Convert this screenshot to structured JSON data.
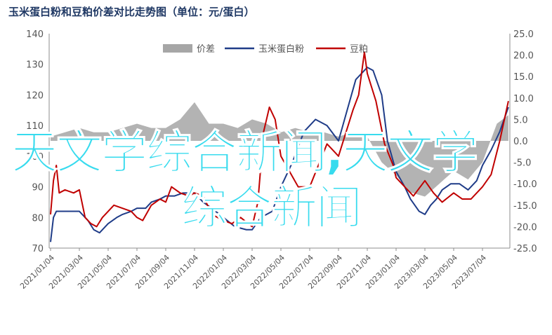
{
  "chart_data": {
    "type": "line",
    "title": "玉米蛋白粉和豆粕价差对比走势图（单位：元/蛋白）",
    "left_axis": {
      "ylim": [
        70,
        140
      ],
      "ticks": [
        "70",
        "80",
        "90",
        "100",
        "110",
        "120",
        "130",
        "140"
      ]
    },
    "right_axis": {
      "ylim": [
        -25,
        25
      ],
      "ticks": [
        "-25.0",
        "-20.0",
        "-15.0",
        "-10.0",
        "-5.0",
        "0.0",
        "5.0",
        "10.0",
        "15.0",
        "20.0",
        "25.0"
      ]
    },
    "x_ticks": [
      "2021/01/04",
      "2021/03/04",
      "2021/05/04",
      "2021/07/04",
      "2021/09/04",
      "2021/11/04",
      "2022/01/04",
      "2022/03/04",
      "2022/05/04",
      "2022/07/04",
      "2022/09/04",
      "2022/11/04",
      "2023/01/04",
      "2023/03/04",
      "2023/05/04",
      "2023/07/04"
    ],
    "legend_position": "top-center",
    "grid": false,
    "series": [
      {
        "name": "价差",
        "axis": "right",
        "kind": "area",
        "color": "#a6a6a6",
        "x": [
          0,
          0.5,
          1,
          1.5,
          2,
          2.5,
          3,
          3.5,
          4,
          4.5,
          5,
          5.5,
          6,
          6.5,
          7,
          7.5,
          8,
          8.5,
          9,
          9.5,
          10,
          10.5,
          11,
          11.5,
          12,
          12.5,
          13,
          13.5,
          14,
          14.5,
          15,
          15.5,
          15.9
        ],
        "values": [
          1,
          2,
          3,
          2,
          2,
          3,
          4,
          3,
          3,
          5,
          9,
          4,
          4,
          3,
          5,
          4,
          2,
          3,
          2,
          2,
          1,
          2,
          1,
          -5,
          -8,
          -12,
          -13,
          -10,
          -7,
          -9,
          -5,
          4,
          6
        ]
      },
      {
        "name": "玉米蛋白粉",
        "axis": "left",
        "kind": "line",
        "color": "#1f3c88",
        "x": [
          0,
          0.1,
          0.2,
          0.5,
          0.9,
          1,
          1.3,
          1.5,
          1.7,
          2,
          2.3,
          2.5,
          2.8,
          3,
          3.3,
          3.5,
          3.8,
          4,
          4.3,
          4.6,
          5,
          5.3,
          5.6,
          6,
          6.4,
          6.8,
          7,
          7.3,
          7.7,
          8,
          8.4,
          8.8,
          9.2,
          9.6,
          10,
          10.3,
          10.6,
          10.9,
          11,
          11.2,
          11.5,
          11.7,
          12,
          12.3,
          12.5,
          12.8,
          13,
          13.2,
          13.4,
          13.6,
          13.9,
          14.2,
          14.5,
          14.8,
          15,
          15.3,
          15.6,
          15.9
        ],
        "values": [
          72,
          80,
          82,
          82,
          82,
          82,
          79,
          76,
          75,
          78,
          80,
          81,
          82,
          83,
          83,
          85,
          86,
          87,
          87,
          88,
          88,
          85,
          83,
          80,
          77,
          76,
          76,
          80,
          82,
          90,
          98,
          108,
          112,
          110,
          105,
          115,
          125,
          128,
          129,
          128,
          120,
          105,
          95,
          90,
          86,
          82,
          81,
          84,
          86,
          89,
          91,
          91,
          89,
          92,
          97,
          102,
          108,
          116
        ]
      },
      {
        "name": "豆粕",
        "axis": "left",
        "kind": "line",
        "color": "#c00000",
        "x": [
          0,
          0.1,
          0.2,
          0.3,
          0.5,
          0.8,
          1,
          1.2,
          1.4,
          1.6,
          1.8,
          2,
          2.2,
          2.5,
          2.8,
          3,
          3.2,
          3.5,
          3.8,
          4,
          4.2,
          4.5,
          4.8,
          5,
          5.3,
          5.6,
          6,
          6.3,
          6.6,
          7,
          7.2,
          7.4,
          7.6,
          7.8,
          8,
          8.3,
          8.6,
          9,
          9.3,
          9.6,
          10,
          10.2,
          10.5,
          10.7,
          10.9,
          11,
          11.3,
          11.6,
          11.9,
          12,
          12.3,
          12.6,
          13,
          13.3,
          13.6,
          14,
          14.3,
          14.6,
          15,
          15.3,
          15.6,
          15.9
        ],
        "values": [
          81,
          92,
          97,
          88,
          89,
          88,
          89,
          80,
          78,
          77,
          80,
          82,
          84,
          83,
          82,
          80,
          79,
          84,
          86,
          85,
          90,
          88,
          87,
          88,
          87,
          81,
          79,
          78,
          80,
          77,
          85,
          108,
          116,
          112,
          100,
          95,
          90,
          90,
          97,
          104,
          100,
          106,
          115,
          120,
          134,
          127,
          118,
          104,
          97,
          93,
          90,
          87,
          92,
          88,
          85,
          88,
          86,
          86,
          90,
          94,
          105,
          118
        ]
      }
    ],
    "watermark": "天文学综合新闻,天文学综合新闻"
  },
  "overlay": {
    "line1": "天文学综合新闻,天文学",
    "line2": "综合新闻"
  }
}
